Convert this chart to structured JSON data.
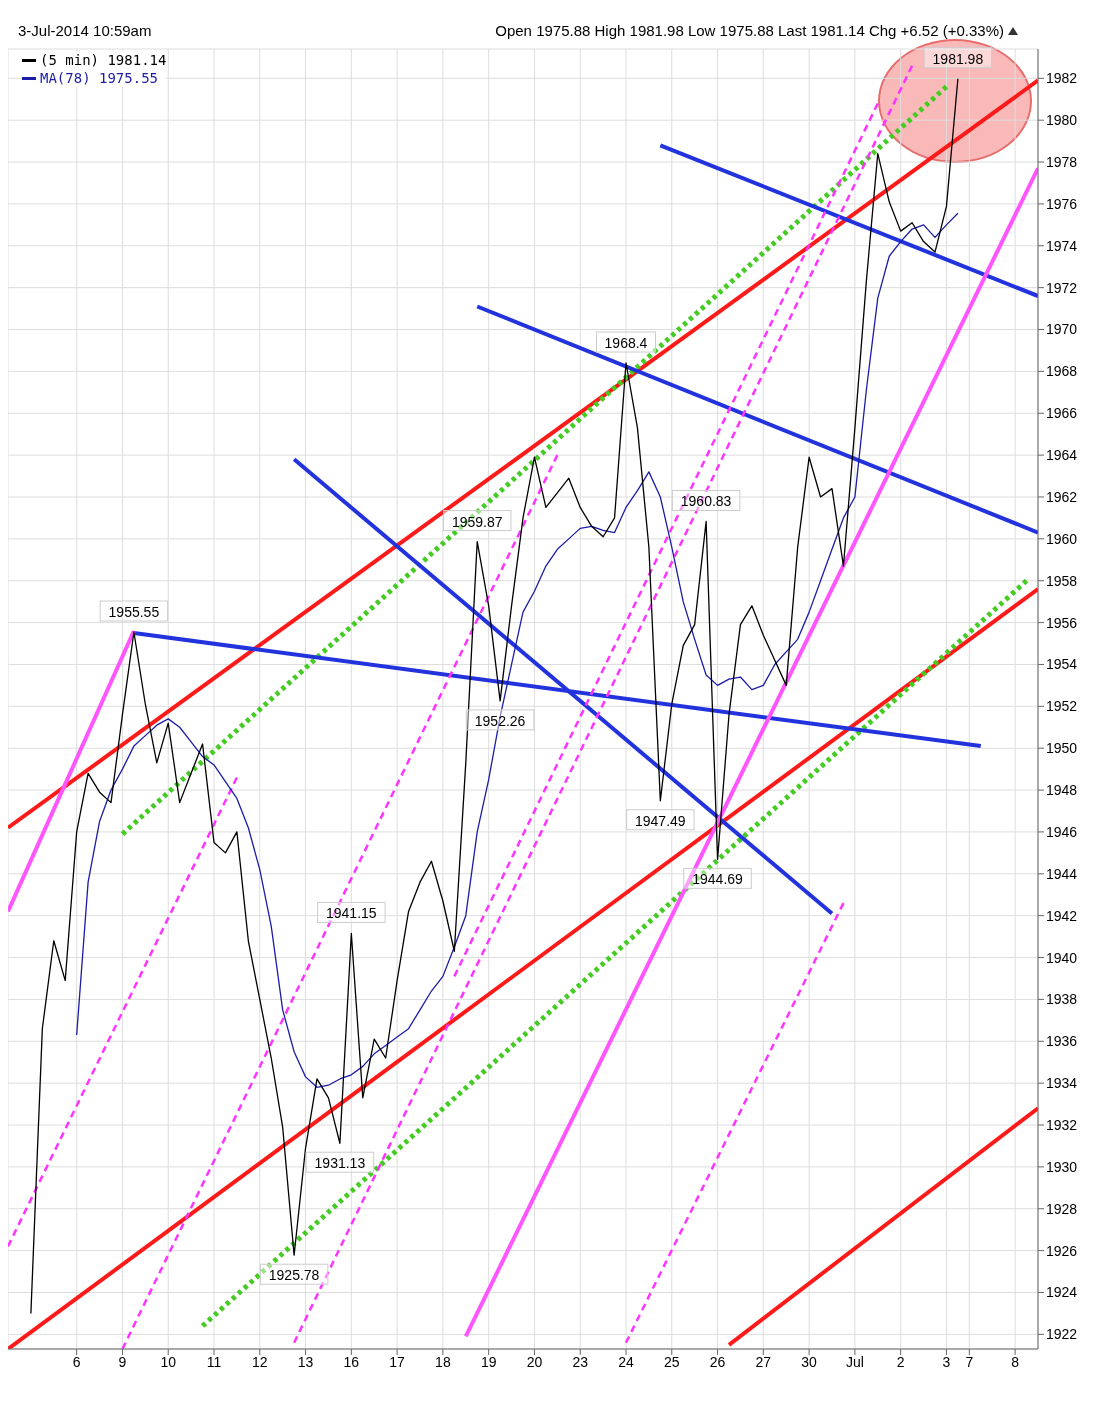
{
  "chart_data": {
    "type": "line",
    "title": "3-Jul-2014 10:59am",
    "subtitle": "Open 1975.88 High 1981.98 Low 1975.88 Last 1981.14 Chg +6.52 (+0.33%)",
    "categories": [
      null,
      null,
      null,
      null,
      null,
      null,
      "6",
      null,
      null,
      null,
      "9",
      null,
      null,
      null,
      "10",
      null,
      null,
      null,
      "11",
      null,
      null,
      null,
      "12",
      null,
      null,
      null,
      "13",
      null,
      null,
      null,
      "16",
      null,
      null,
      null,
      "17",
      null,
      null,
      null,
      "18",
      null,
      null,
      null,
      "19",
      null,
      null,
      null,
      "20",
      null,
      null,
      null,
      "23",
      null,
      null,
      null,
      "24",
      null,
      null,
      null,
      "25",
      null,
      null,
      null,
      "26",
      null,
      null,
      null,
      "27",
      null,
      null,
      null,
      "30",
      null,
      null,
      null,
      "Jul",
      null,
      null,
      null,
      "2",
      null,
      null,
      null,
      "3",
      null,
      "7",
      null,
      null,
      null,
      "8",
      null,
      null
    ],
    "ylim": [
      1921.3,
      1983.4
    ],
    "yticks": [
      1922,
      1924,
      1926,
      1928,
      1930,
      1932,
      1934,
      1936,
      1938,
      1940,
      1942,
      1944,
      1946,
      1948,
      1950,
      1952,
      1954,
      1956,
      1958,
      1960,
      1962,
      1964,
      1966,
      1968,
      1970,
      1972,
      1974,
      1976,
      1978,
      1980,
      1982
    ],
    "grid": true,
    "legend": "top left",
    "series": [
      {
        "name": "(5 min) 1981.14",
        "color": "#000000",
        "values": [
          null,
          null,
          1923.0,
          1936.6,
          1940.8,
          1938.9,
          1946.0,
          1948.8,
          1947.9,
          1947.4,
          1951.6,
          1955.55,
          1952.1,
          1949.3,
          1951.2,
          1947.4,
          1948.8,
          1950.2,
          1945.5,
          1945.0,
          1946.0,
          1940.8,
          1938.0,
          1935.2,
          1931.9,
          1925.78,
          1930.9,
          1934.2,
          1933.3,
          1931.13,
          1941.15,
          1933.3,
          1936.1,
          1935.2,
          1938.9,
          1942.2,
          1943.6,
          1944.6,
          1942.7,
          1940.3,
          1949.3,
          1959.87,
          1956.8,
          1952.26,
          1956.8,
          1961.0,
          1963.9,
          1961.5,
          1962.2,
          1962.9,
          1961.5,
          1960.6,
          1960.1,
          1961.0,
          1968.4,
          1965.3,
          1959.6,
          1947.49,
          1952.1,
          1954.9,
          1955.9,
          1960.83,
          1944.69,
          1951.6,
          1955.9,
          1956.8,
          1955.4,
          1954.2,
          1953.0,
          1959.6,
          1963.9,
          1962.0,
          1962.4,
          1958.7,
          1965.3,
          1972.3,
          1978.4,
          1976.1,
          1974.7,
          1975.1,
          1974.2,
          1973.7,
          1975.88,
          1981.98,
          null,
          null,
          null,
          null,
          null,
          null,
          null
        ]
      },
      {
        "name": "MA(78) 1975.55",
        "color": "#1c1ca8",
        "values": [
          null,
          null,
          null,
          null,
          null,
          null,
          1936.3,
          1943.6,
          1946.5,
          1948.0,
          1949.0,
          1950.1,
          1950.6,
          1951.1,
          1951.4,
          1951.0,
          1950.3,
          1949.6,
          1949.2,
          1948.4,
          1947.6,
          1946.2,
          1944.2,
          1941.5,
          1937.5,
          1935.5,
          1934.3,
          1933.8,
          1933.9,
          1934.2,
          1934.4,
          1934.8,
          1935.4,
          1935.8,
          1936.2,
          1936.6,
          1937.5,
          1938.4,
          1939.1,
          1940.5,
          1942.0,
          1946.0,
          1948.5,
          1951.5,
          1954.0,
          1956.5,
          1957.5,
          1958.7,
          1959.5,
          1960.0,
          1960.5,
          1960.6,
          1960.4,
          1960.3,
          1961.5,
          1962.3,
          1963.2,
          1962.0,
          1959.6,
          1957.0,
          1955.2,
          1953.5,
          1953.0,
          1953.3,
          1953.4,
          1952.8,
          1953.0,
          1954.0,
          1954.6,
          1955.2,
          1956.5,
          1958.0,
          1959.5,
          1961.0,
          1962.0,
          1967.1,
          1971.5,
          1973.5,
          1974.2,
          1974.8,
          1975.0,
          1974.4,
          1975.0,
          1975.55,
          null,
          null,
          null,
          null,
          null,
          null,
          null
        ]
      },
      {
        "color": "#ff1a1a",
        "line_style": "solid",
        "values": [
          1946.2,
          null,
          null,
          null,
          null,
          null,
          null,
          null,
          null,
          null,
          null,
          null,
          null,
          null,
          null,
          null,
          null,
          null,
          null,
          null,
          null,
          null,
          null,
          null,
          null,
          null,
          null,
          null,
          null,
          null,
          null,
          null,
          null,
          null,
          null,
          null,
          null,
          null,
          null,
          null,
          null,
          null,
          null,
          null,
          null,
          null,
          null,
          null,
          null,
          null,
          null,
          null,
          null,
          null,
          null,
          null,
          null,
          null,
          null,
          null,
          null,
          null,
          null,
          null,
          null,
          null,
          null,
          null,
          null,
          null,
          null,
          null,
          null,
          null,
          null,
          null,
          null,
          null,
          null,
          null,
          null,
          null,
          null,
          null,
          null,
          null,
          null,
          null,
          null,
          null,
          1981.9
        ]
      },
      {
        "color": "#ff1a1a",
        "line_style": "solid",
        "values": [
          1921.3,
          null,
          null,
          null,
          null,
          null,
          null,
          null,
          null,
          null,
          null,
          null,
          null,
          null,
          null,
          null,
          null,
          null,
          null,
          null,
          null,
          null,
          null,
          null,
          null,
          null,
          null,
          null,
          null,
          null,
          null,
          null,
          null,
          null,
          null,
          null,
          null,
          null,
          null,
          null,
          null,
          null,
          null,
          null,
          null,
          null,
          null,
          null,
          null,
          null,
          null,
          null,
          null,
          null,
          null,
          null,
          null,
          null,
          null,
          null,
          null,
          null,
          null,
          null,
          null,
          null,
          null,
          null,
          null,
          null,
          null,
          null,
          null,
          null,
          null,
          null,
          null,
          null,
          null,
          null,
          null,
          null,
          null,
          null,
          null,
          null,
          null,
          null,
          null,
          null,
          1957.6
        ]
      },
      {
        "color": "#ff1a1a",
        "line_style": "solid",
        "values": [
          null,
          null,
          null,
          null,
          null,
          null,
          null,
          null,
          null,
          null,
          null,
          null,
          null,
          null,
          null,
          null,
          null,
          null,
          null,
          null,
          null,
          null,
          null,
          null,
          null,
          null,
          null,
          null,
          null,
          null,
          null,
          null,
          null,
          null,
          null,
          null,
          null,
          null,
          null,
          null,
          null,
          null,
          null,
          null,
          null,
          null,
          null,
          null,
          null,
          null,
          null,
          null,
          null,
          null,
          null,
          null,
          null,
          null,
          null,
          null,
          null,
          null,
          null,
          1921.5,
          null,
          null,
          null,
          null,
          null,
          null,
          null,
          null,
          null,
          null,
          null,
          null,
          null,
          null,
          null,
          null,
          null,
          null,
          null,
          null,
          null,
          null,
          null,
          null,
          null,
          null,
          1932.8
        ]
      },
      {
        "color": "#44cc22",
        "line_style": "dotted",
        "values": [
          null,
          null,
          null,
          null,
          null,
          null,
          null,
          null,
          null,
          null,
          1945.9,
          null,
          null,
          null,
          null,
          null,
          null,
          null,
          null,
          null,
          null,
          null,
          null,
          null,
          null,
          null,
          null,
          null,
          null,
          null,
          null,
          null,
          null,
          null,
          null,
          null,
          null,
          null,
          null,
          null,
          null,
          null,
          null,
          null,
          null,
          null,
          null,
          null,
          null,
          null,
          null,
          null,
          null,
          null,
          null,
          null,
          null,
          null,
          null,
          null,
          null,
          null,
          null,
          null,
          null,
          null,
          null,
          null,
          null,
          null,
          null,
          null,
          null,
          null,
          null,
          null,
          null,
          null,
          null,
          null,
          null,
          null,
          1981.6,
          null,
          null,
          null,
          null,
          null,
          null,
          null,
          null
        ]
      },
      {
        "color": "#44cc22",
        "line_style": "dotted",
        "values": [
          null,
          null,
          null,
          null,
          null,
          null,
          null,
          null,
          null,
          null,
          null,
          null,
          null,
          null,
          null,
          null,
          null,
          1922.4,
          null,
          null,
          null,
          null,
          null,
          null,
          null,
          null,
          null,
          null,
          null,
          null,
          null,
          null,
          null,
          null,
          null,
          null,
          null,
          null,
          null,
          null,
          null,
          null,
          null,
          null,
          null,
          null,
          null,
          null,
          null,
          null,
          null,
          null,
          null,
          null,
          null,
          null,
          null,
          null,
          null,
          null,
          null,
          null,
          null,
          null,
          null,
          null,
          null,
          null,
          null,
          null,
          null,
          null,
          null,
          null,
          null,
          null,
          null,
          null,
          null,
          null,
          null,
          null,
          null,
          null,
          null,
          null,
          null,
          null,
          null,
          1958.0,
          null
        ]
      },
      {
        "color": "#2233dd",
        "line_style": "solid",
        "values": [
          null,
          null,
          null,
          null,
          null,
          null,
          null,
          null,
          null,
          null,
          null,
          1955.5,
          null,
          null,
          null,
          null,
          null,
          null,
          null,
          null,
          null,
          null,
          null,
          null,
          null,
          null,
          null,
          null,
          null,
          null,
          null,
          null,
          null,
          null,
          null,
          null,
          null,
          null,
          null,
          null,
          null,
          null,
          null,
          null,
          null,
          null,
          null,
          null,
          null,
          null,
          null,
          null,
          null,
          null,
          null,
          null,
          null,
          null,
          null,
          null,
          null,
          null,
          null,
          null,
          null,
          null,
          null,
          null,
          null,
          null,
          null,
          null,
          null,
          null,
          null,
          null,
          null,
          null,
          null,
          null,
          null,
          null,
          null,
          null,
          null,
          1950.1,
          null,
          null,
          null,
          null,
          null
        ]
      },
      {
        "color": "#2233dd",
        "line_style": "solid",
        "values": [
          null,
          null,
          null,
          null,
          null,
          null,
          null,
          null,
          null,
          null,
          null,
          null,
          null,
          null,
          null,
          null,
          null,
          null,
          null,
          null,
          null,
          null,
          null,
          null,
          null,
          1963.8,
          null,
          null,
          null,
          null,
          null,
          null,
          null,
          null,
          null,
          null,
          null,
          null,
          null,
          null,
          null,
          null,
          null,
          null,
          null,
          null,
          null,
          null,
          null,
          null,
          null,
          null,
          null,
          null,
          null,
          null,
          null,
          null,
          null,
          null,
          null,
          null,
          null,
          null,
          null,
          null,
          null,
          null,
          null,
          null,
          null,
          null,
          1942.1,
          null,
          null,
          null,
          null,
          null,
          null,
          null,
          null,
          null,
          null,
          null,
          null,
          null,
          null,
          null,
          null,
          null,
          null
        ]
      },
      {
        "color": "#2233dd",
        "line_style": "solid",
        "values": [
          null,
          null,
          null,
          null,
          null,
          null,
          null,
          null,
          null,
          null,
          null,
          null,
          null,
          null,
          null,
          null,
          null,
          null,
          null,
          null,
          null,
          null,
          null,
          null,
          null,
          null,
          null,
          null,
          null,
          null,
          null,
          null,
          null,
          null,
          null,
          null,
          null,
          null,
          null,
          null,
          null,
          1971.1,
          null,
          null,
          null,
          null,
          null,
          null,
          null,
          null,
          null,
          null,
          null,
          null,
          null,
          null,
          null,
          null,
          null,
          null,
          null,
          null,
          null,
          null,
          null,
          null,
          null,
          null,
          null,
          null,
          null,
          null,
          null,
          null,
          null,
          null,
          null,
          null,
          null,
          null,
          null,
          null,
          null,
          null,
          null,
          null,
          null,
          null,
          null,
          null,
          1960.3
        ]
      },
      {
        "color": "#2233dd",
        "line_style": "solid",
        "values": [
          null,
          null,
          null,
          null,
          null,
          null,
          null,
          null,
          null,
          null,
          null,
          null,
          null,
          null,
          null,
          null,
          null,
          null,
          null,
          null,
          null,
          null,
          null,
          null,
          null,
          null,
          null,
          null,
          null,
          null,
          null,
          null,
          null,
          null,
          null,
          null,
          null,
          null,
          null,
          null,
          null,
          null,
          null,
          null,
          null,
          null,
          null,
          null,
          null,
          null,
          null,
          null,
          null,
          null,
          null,
          null,
          null,
          1978.8,
          null,
          null,
          null,
          null,
          null,
          null,
          null,
          null,
          null,
          null,
          null,
          null,
          null,
          null,
          null,
          null,
          null,
          null,
          null,
          null,
          null,
          null,
          null,
          null,
          null,
          null,
          null,
          null,
          null,
          null,
          null,
          null,
          1971.6
        ]
      },
      {
        "color": "#ff33ff",
        "line_style": "dashed",
        "values": [
          1926.2,
          null,
          null,
          null,
          null,
          null,
          null,
          null,
          null,
          null,
          null,
          null,
          null,
          null,
          null,
          null,
          null,
          null,
          null,
          null,
          1948.6,
          null,
          null,
          null,
          null,
          null,
          null,
          null,
          null,
          null,
          null,
          null,
          null,
          null,
          null,
          null,
          null,
          null,
          null,
          null,
          null,
          null,
          null,
          null,
          null,
          null,
          null,
          null,
          null,
          null,
          null,
          null,
          null,
          null,
          null,
          null,
          null,
          null,
          null,
          null,
          null,
          null,
          null,
          null,
          null,
          null,
          null,
          null,
          null,
          null,
          null,
          null,
          null,
          null,
          null,
          null,
          null,
          null,
          null,
          null,
          null,
          null,
          null,
          null,
          null,
          null,
          null,
          null,
          null,
          null,
          null
        ]
      },
      {
        "color": "#ff33ff",
        "line_style": "dashed",
        "values": [
          null,
          null,
          null,
          null,
          null,
          null,
          null,
          null,
          null,
          null,
          1921.3,
          null,
          null,
          null,
          null,
          null,
          null,
          null,
          null,
          null,
          null,
          null,
          null,
          null,
          null,
          null,
          null,
          null,
          null,
          null,
          null,
          null,
          null,
          null,
          null,
          null,
          null,
          null,
          null,
          null,
          null,
          null,
          null,
          null,
          null,
          null,
          null,
          null,
          1964.0,
          null,
          null,
          null,
          null,
          null,
          null,
          null,
          null,
          null,
          null,
          null,
          null,
          null,
          null,
          null,
          null,
          null,
          null,
          null,
          null,
          null,
          null,
          null,
          null,
          null,
          null,
          null,
          null,
          null,
          null,
          null,
          null,
          null,
          null,
          null,
          null,
          null,
          null,
          null,
          null,
          null,
          null
        ]
      },
      {
        "color": "#ff33ff",
        "line_style": "dashed",
        "values": [
          null,
          null,
          null,
          null,
          null,
          null,
          null,
          null,
          null,
          null,
          null,
          null,
          null,
          null,
          null,
          null,
          null,
          null,
          null,
          null,
          null,
          null,
          null,
          null,
          null,
          1921.6,
          null,
          null,
          null,
          null,
          null,
          null,
          null,
          null,
          null,
          null,
          null,
          null,
          null,
          null,
          null,
          null,
          null,
          null,
          null,
          null,
          null,
          null,
          null,
          null,
          null,
          null,
          null,
          null,
          null,
          null,
          null,
          null,
          null,
          null,
          null,
          null,
          null,
          null,
          null,
          null,
          null,
          null,
          null,
          null,
          null,
          null,
          null,
          null,
          null,
          null,
          null,
          null,
          null,
          1982.6,
          null,
          null,
          null,
          null,
          null,
          null,
          null,
          null,
          null,
          null,
          null
        ]
      },
      {
        "color": "#ff33ff",
        "line_style": "dashed",
        "values": [
          null,
          null,
          null,
          null,
          null,
          null,
          null,
          null,
          null,
          null,
          null,
          null,
          null,
          null,
          null,
          null,
          null,
          null,
          null,
          null,
          null,
          null,
          null,
          null,
          null,
          null,
          null,
          null,
          null,
          null,
          null,
          null,
          null,
          null,
          null,
          null,
          null,
          null,
          null,
          null,
          null,
          null,
          null,
          null,
          null,
          null,
          null,
          null,
          null,
          null,
          null,
          null,
          null,
          null,
          1921.6,
          null,
          null,
          null,
          null,
          null,
          null,
          null,
          null,
          null,
          null,
          null,
          null,
          null,
          null,
          null,
          null,
          null,
          null,
          1942.6,
          null,
          null,
          null,
          null,
          null,
          null,
          null,
          null,
          null,
          null,
          null,
          null,
          null,
          null,
          null,
          null,
          null
        ]
      },
      {
        "color": "#ff33ff",
        "line_style": "dashed",
        "values": [
          null,
          null,
          null,
          null,
          null,
          null,
          null,
          null,
          null,
          null,
          null,
          null,
          null,
          null,
          null,
          null,
          null,
          null,
          null,
          null,
          null,
          null,
          null,
          null,
          null,
          null,
          null,
          null,
          null,
          null,
          null,
          null,
          null,
          null,
          null,
          null,
          null,
          null,
          null,
          1939.1,
          null,
          null,
          null,
          null,
          null,
          null,
          null,
          null,
          null,
          null,
          null,
          null,
          null,
          null,
          null,
          null,
          null,
          null,
          null,
          null,
          null,
          null,
          null,
          null,
          null,
          null,
          null,
          null,
          null,
          null,
          null,
          null,
          null,
          null,
          null,
          null,
          1980.8,
          null,
          null,
          null,
          null,
          null,
          null,
          null,
          null,
          null,
          null,
          null,
          null,
          null,
          null
        ]
      },
      {
        "color": "#ff55ff",
        "line_style": "solid",
        "values": [
          1942.2,
          null,
          null,
          null,
          null,
          null,
          null,
          null,
          null,
          null,
          null,
          1955.6,
          null,
          null,
          null,
          null,
          null,
          null,
          null,
          null,
          null,
          null,
          null,
          null,
          null,
          null,
          null,
          null,
          null,
          null,
          null,
          null,
          null,
          null,
          null,
          null,
          null,
          null,
          null,
          null,
          null,
          null,
          null,
          null,
          null,
          null,
          null,
          null,
          null,
          null,
          null,
          null,
          null,
          null,
          null,
          null,
          null,
          null,
          null,
          null,
          null,
          null,
          null,
          null,
          null,
          null,
          null,
          null,
          null,
          null,
          null,
          null,
          null,
          null,
          null,
          null,
          null,
          null,
          null,
          null,
          null,
          null,
          null,
          null,
          null,
          null,
          null,
          null,
          null,
          null,
          null
        ]
      },
      {
        "color": "#ff55ff",
        "line_style": "solid",
        "values": [
          null,
          null,
          null,
          null,
          null,
          null,
          null,
          null,
          null,
          null,
          null,
          null,
          null,
          null,
          null,
          null,
          null,
          null,
          null,
          null,
          null,
          null,
          null,
          null,
          null,
          null,
          null,
          null,
          null,
          null,
          null,
          null,
          null,
          null,
          null,
          null,
          null,
          null,
          null,
          null,
          1921.9,
          null,
          null,
          null,
          null,
          null,
          null,
          null,
          null,
          null,
          null,
          null,
          null,
          null,
          null,
          null,
          null,
          null,
          null,
          null,
          null,
          null,
          null,
          null,
          null,
          null,
          null,
          null,
          null,
          null,
          null,
          null,
          null,
          null,
          null,
          null,
          null,
          null,
          null,
          null,
          null,
          null,
          null,
          null,
          null,
          null,
          null,
          null,
          null,
          null,
          1977.7
        ]
      }
    ],
    "annotations": [
      {
        "text": "1955.55",
        "y": 1955.55
      },
      {
        "text": "1925.78",
        "y": 1925.78
      },
      {
        "text": "1931.13",
        "y": 1931.13
      },
      {
        "text": "1941.15",
        "x": "16",
        "y": 1941.15
      },
      {
        "text": "1959.87",
        "y": 1959.87
      },
      {
        "text": "1952.26",
        "y": 1952.26
      },
      {
        "text": "1968.4",
        "x": "24",
        "y": 1968.4
      },
      {
        "text": "1947.49",
        "y": 1947.49
      },
      {
        "text": "1960.83",
        "y": 1960.83
      },
      {
        "text": "1944.69",
        "x": "26",
        "y": 1944.69
      },
      {
        "text": "1981.98",
        "y": 1981.98
      }
    ]
  }
}
